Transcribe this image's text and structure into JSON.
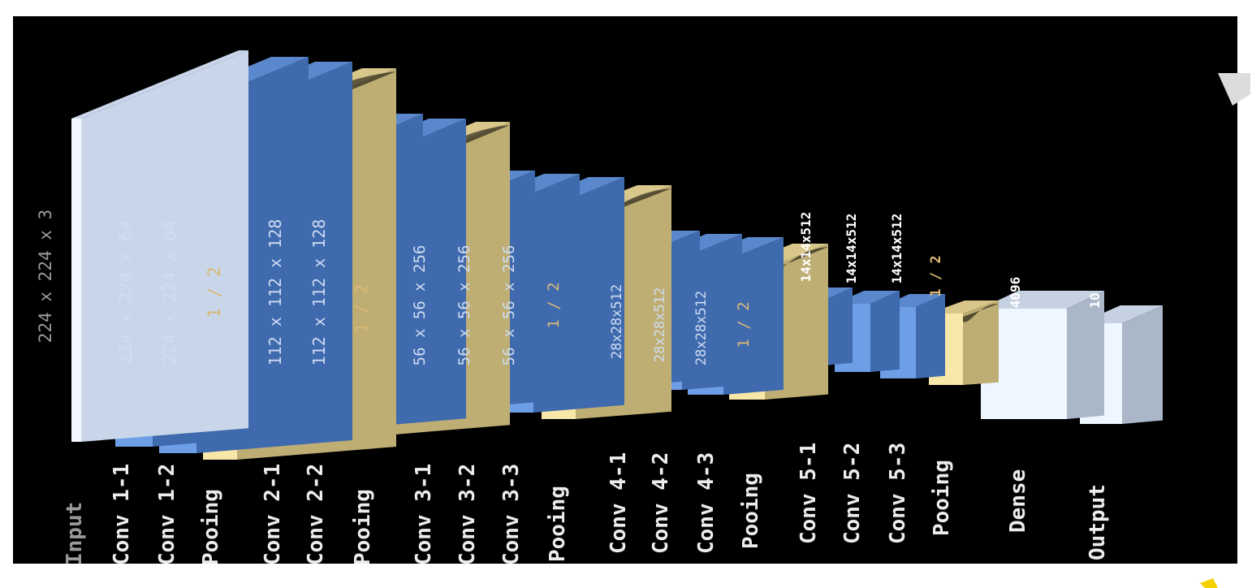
{
  "colors": {
    "background": "#000000",
    "page": "#ffffff",
    "conv_front": "#6d9ee6",
    "conv_top": "#5b87cc",
    "conv_side": "#3f6aae",
    "pool_front": "#f7e7a9",
    "pool_top": "#d8c68a",
    "pool_side": "#bfae74",
    "input_front": "#f4f8ff",
    "input_top": "#c9d6ea",
    "dense_front": "#eef6ff",
    "dense_top": "#c6d2e2",
    "dense_side": "#a9b7c9",
    "label_text": "#ececec",
    "label_dim": "#9a9a9a",
    "dim_on_conv": "#cfdcf2",
    "dim_on_pool": "#d9b977",
    "dim_white": "#ffffff",
    "accent_yellow": "#f4d100"
  },
  "layers": [
    {
      "id": "input",
      "kind": "input",
      "label": "Input",
      "dim": "224 x 224 x 3"
    },
    {
      "id": "conv1-1",
      "kind": "conv",
      "label": "Conv 1-1",
      "dim": "224 x 224 x 64"
    },
    {
      "id": "conv1-2",
      "kind": "conv",
      "label": "Conv 1-2",
      "dim": "224 x 224 x 64"
    },
    {
      "id": "pool1",
      "kind": "pool",
      "label": "Pooing",
      "dim": "1 / 2"
    },
    {
      "id": "conv2-1",
      "kind": "conv",
      "label": "Conv 2-1",
      "dim": "112 x 112 x 128"
    },
    {
      "id": "conv2-2",
      "kind": "conv",
      "label": "Conv 2-2",
      "dim": "112 x 112 x 128"
    },
    {
      "id": "pool2",
      "kind": "pool",
      "label": "Pooing",
      "dim": "1 / 2"
    },
    {
      "id": "conv3-1",
      "kind": "conv",
      "label": "Conv 3-1",
      "dim": "56 x 56 x 256"
    },
    {
      "id": "conv3-2",
      "kind": "conv",
      "label": "Conv 3-2",
      "dim": "56 x 56 x 256"
    },
    {
      "id": "conv3-3",
      "kind": "conv",
      "label": "Conv 3-3",
      "dim": "56 x 56 x 256"
    },
    {
      "id": "pool3",
      "kind": "pool",
      "label": "Pooing",
      "dim": "1 / 2"
    },
    {
      "id": "conv4-1",
      "kind": "conv",
      "label": "Conv 4-1",
      "dim": "28x28x512"
    },
    {
      "id": "conv4-2",
      "kind": "conv",
      "label": "Conv 4-2",
      "dim": "28x28x512"
    },
    {
      "id": "conv4-3",
      "kind": "conv",
      "label": "Conv 4-3",
      "dim": "28x28x512"
    },
    {
      "id": "pool4",
      "kind": "pool",
      "label": "Pooing",
      "dim": "1 / 2"
    },
    {
      "id": "conv5-1",
      "kind": "conv",
      "label": "Conv 5-1",
      "dim": "14x14x512"
    },
    {
      "id": "conv5-2",
      "kind": "conv",
      "label": "Conv 5-2",
      "dim": "14x14x512"
    },
    {
      "id": "conv5-3",
      "kind": "conv",
      "label": "Conv 5-3",
      "dim": "14x14x512"
    },
    {
      "id": "pool5",
      "kind": "pool",
      "label": "Pooing",
      "dim": "1 / 2"
    },
    {
      "id": "dense",
      "kind": "dense",
      "label": "Dense",
      "dim": "4096"
    },
    {
      "id": "output",
      "kind": "dense",
      "label": "Output",
      "dim": "10"
    }
  ]
}
